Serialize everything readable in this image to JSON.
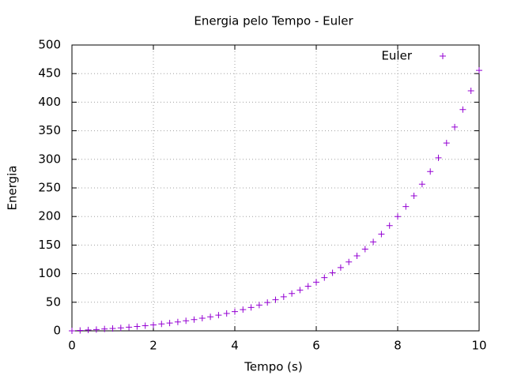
{
  "chart_data": {
    "type": "scatter",
    "title": "Energia pelo Tempo - Euler",
    "x_label": "Tempo (s)",
    "y_label": "Energia",
    "xlim": [
      0,
      10
    ],
    "ylim": [
      0,
      500
    ],
    "xticks": [
      0,
      2,
      4,
      6,
      8,
      10
    ],
    "yticks": [
      0,
      50,
      100,
      150,
      200,
      250,
      300,
      350,
      400,
      450,
      500
    ],
    "grid": true,
    "legend": "top-right",
    "series": [
      {
        "name": "Euler",
        "color": "#9400d3",
        "x": [
          0,
          0.2,
          0.4,
          0.6,
          0.8,
          1,
          1.2,
          1.4,
          1.6,
          1.8,
          2,
          2.2,
          2.4,
          2.6,
          2.8,
          3,
          3.2,
          3.4,
          3.6,
          3.8,
          4,
          4.2,
          4.4,
          4.6,
          4.8,
          5,
          5.2,
          5.4,
          5.6,
          5.8,
          6,
          6.2,
          6.4,
          6.6,
          6.8,
          7,
          7.2,
          7.4,
          7.6,
          7.8,
          8,
          8.2,
          8.4,
          8.6,
          8.8,
          9,
          9.2,
          9.4,
          9.6,
          9.8,
          10
        ],
        "values": [
          0,
          0.7,
          1.5,
          2.3,
          3.2,
          4.2,
          5.2,
          6.4,
          7.6,
          9.0,
          10.4,
          12.0,
          13.7,
          15.6,
          17.6,
          19.7,
          22.1,
          24.6,
          27.4,
          30.4,
          33.6,
          37.1,
          40.9,
          45.0,
          49.5,
          54.3,
          59.5,
          65.2,
          71.3,
          78.0,
          85.2,
          93.0,
          101.5,
          110.6,
          120.5,
          131.3,
          142.9,
          155.5,
          169.2,
          184.0,
          200.0,
          217.4,
          236.2,
          256.6,
          278.7,
          302.6,
          328.5,
          356.6,
          387.0,
          419.9,
          455.6
        ]
      }
    ]
  }
}
